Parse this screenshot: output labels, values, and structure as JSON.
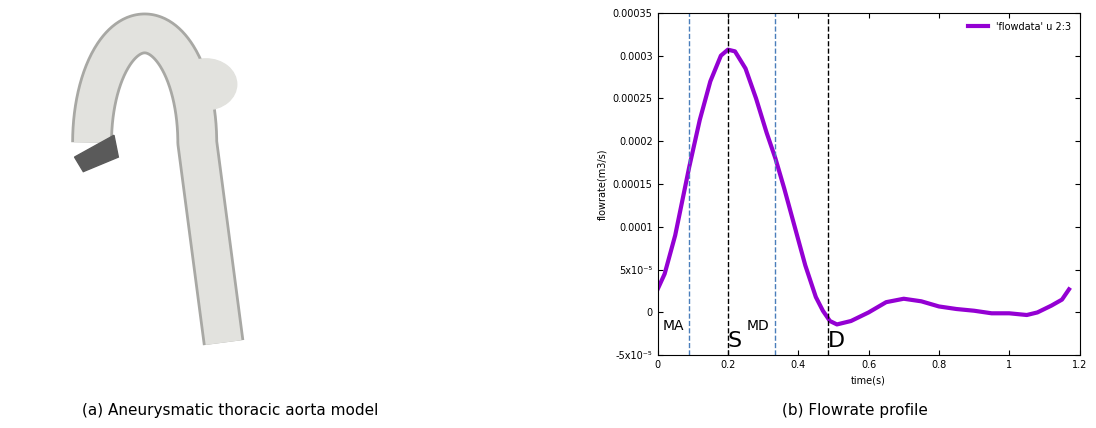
{
  "chart_data": {
    "type": "line",
    "x": [
      0,
      0.02,
      0.05,
      0.09,
      0.12,
      0.15,
      0.18,
      0.2,
      0.22,
      0.25,
      0.28,
      0.31,
      0.335,
      0.36,
      0.39,
      0.42,
      0.45,
      0.47,
      0.49,
      0.51,
      0.55,
      0.6,
      0.65,
      0.7,
      0.75,
      0.8,
      0.85,
      0.9,
      0.95,
      1.0,
      1.05,
      1.08,
      1.12,
      1.15,
      1.17
    ],
    "series": [
      {
        "name": "'flowdata' u 2:3",
        "color": "#9400d3",
        "values": [
          2.7e-05,
          4.5e-05,
          9e-05,
          0.00017,
          0.000225,
          0.00027,
          0.0003,
          0.000307,
          0.000305,
          0.000285,
          0.00025,
          0.00021,
          0.00018,
          0.000145,
          0.0001,
          5.5e-05,
          1.8e-05,
          2e-06,
          -1e-05,
          -1.4e-05,
          -1e-05,
          0,
          1.2e-05,
          1.6e-05,
          1.3e-05,
          7e-06,
          4e-06,
          2e-06,
          -1e-06,
          -1e-06,
          -3e-06,
          0,
          8e-06,
          1.5e-05,
          2.7e-05
        ]
      }
    ],
    "x_label": "time(s)",
    "y_label": "flowrate(m3/s)",
    "xlim": [
      0,
      1.2
    ],
    "xticks": [
      0,
      0.2,
      0.4,
      0.6,
      0.8,
      1,
      1.2
    ],
    "ylim": [
      -5e-05,
      0.00035
    ],
    "yticks": [
      {
        "value": -5e-05,
        "label": "-5x10⁻⁵"
      },
      0,
      {
        "value": 5e-05,
        "label": "5x10⁻⁵"
      },
      0.0001,
      0.00015,
      0.0002,
      0.00025,
      0.0003,
      0.00035
    ],
    "legend": "upper right",
    "annotations": [
      {
        "x": 0.09,
        "label": "MA",
        "color": "#4a7ebb",
        "line_style": "dashed"
      },
      {
        "x": 0.2,
        "label": "S",
        "color": "#000000",
        "line_style": "dashed"
      },
      {
        "x": 0.335,
        "label": "MD",
        "color": "#4a7ebb",
        "line_style": "dashed"
      },
      {
        "x": 0.485,
        "label": "D",
        "color": "#000000",
        "line_style": "dashed"
      }
    ]
  },
  "captions": {
    "image": "(a) Aneurysmatic thoracic aorta model",
    "chart": "(b) Flowrate profile"
  }
}
